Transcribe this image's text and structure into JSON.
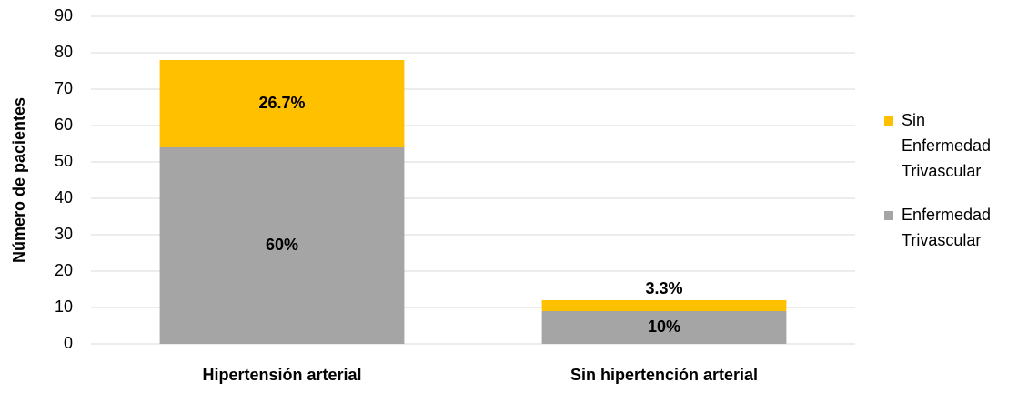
{
  "chart_data": {
    "type": "stacked_bar",
    "ylabel": "Número de pacientes",
    "categories": [
      "Hipertensión arterial",
      "Sin hipertención arterial"
    ],
    "series": [
      {
        "name": "Enfermedad Trivascular",
        "color": "#a5a5a5",
        "values": [
          54,
          9
        ],
        "labels": [
          "60%",
          "10%"
        ]
      },
      {
        "name": "Sin Enfermedad Trivascular",
        "color": "#ffc000",
        "values": [
          24,
          3
        ],
        "labels": [
          "26.7%",
          "3.3%"
        ]
      }
    ],
    "ylim": [
      0,
      90
    ],
    "yticks": [
      0,
      10,
      20,
      30,
      40,
      50,
      60,
      70,
      80,
      90
    ],
    "grid": true,
    "legend": "right"
  }
}
